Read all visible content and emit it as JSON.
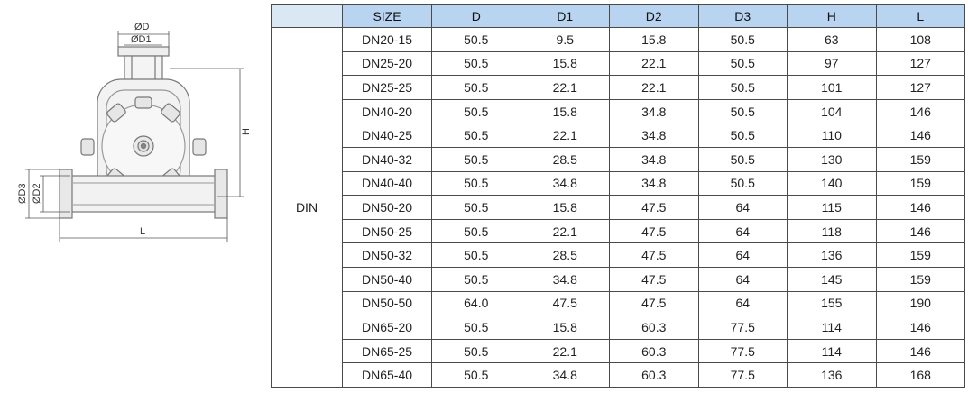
{
  "drawing": {
    "labels": {
      "d": "ØD",
      "d1": "ØD1",
      "d2": "ØD2",
      "d3": "ØD3",
      "h": "H",
      "l": "L"
    }
  },
  "table": {
    "group": "DIN",
    "headers": [
      "SIZE",
      "D",
      "D1",
      "D2",
      "D3",
      "H",
      "L"
    ],
    "rows": [
      [
        "DN20-15",
        "50.5",
        "9.5",
        "15.8",
        "50.5",
        "63",
        "108"
      ],
      [
        "DN25-20",
        "50.5",
        "15.8",
        "22.1",
        "50.5",
        "97",
        "127"
      ],
      [
        "DN25-25",
        "50.5",
        "22.1",
        "22.1",
        "50.5",
        "101",
        "127"
      ],
      [
        "DN40-20",
        "50.5",
        "15.8",
        "34.8",
        "50.5",
        "104",
        "146"
      ],
      [
        "DN40-25",
        "50.5",
        "22.1",
        "34.8",
        "50.5",
        "110",
        "146"
      ],
      [
        "DN40-32",
        "50.5",
        "28.5",
        "34.8",
        "50.5",
        "130",
        "159"
      ],
      [
        "DN40-40",
        "50.5",
        "34.8",
        "34.8",
        "50.5",
        "140",
        "159"
      ],
      [
        "DN50-20",
        "50.5",
        "15.8",
        "47.5",
        "64",
        "115",
        "146"
      ],
      [
        "DN50-25",
        "50.5",
        "22.1",
        "47.5",
        "64",
        "118",
        "146"
      ],
      [
        "DN50-32",
        "50.5",
        "28.5",
        "47.5",
        "64",
        "136",
        "159"
      ],
      [
        "DN50-40",
        "50.5",
        "34.8",
        "47.5",
        "64",
        "145",
        "159"
      ],
      [
        "DN50-50",
        "64.0",
        "47.5",
        "47.5",
        "64",
        "155",
        "190"
      ],
      [
        "DN65-20",
        "50.5",
        "15.8",
        "60.3",
        "77.5",
        "114",
        "146"
      ],
      [
        "DN65-25",
        "50.5",
        "22.1",
        "60.3",
        "77.5",
        "114",
        "146"
      ],
      [
        "DN65-40",
        "50.5",
        "34.8",
        "60.3",
        "77.5",
        "136",
        "168"
      ]
    ]
  }
}
